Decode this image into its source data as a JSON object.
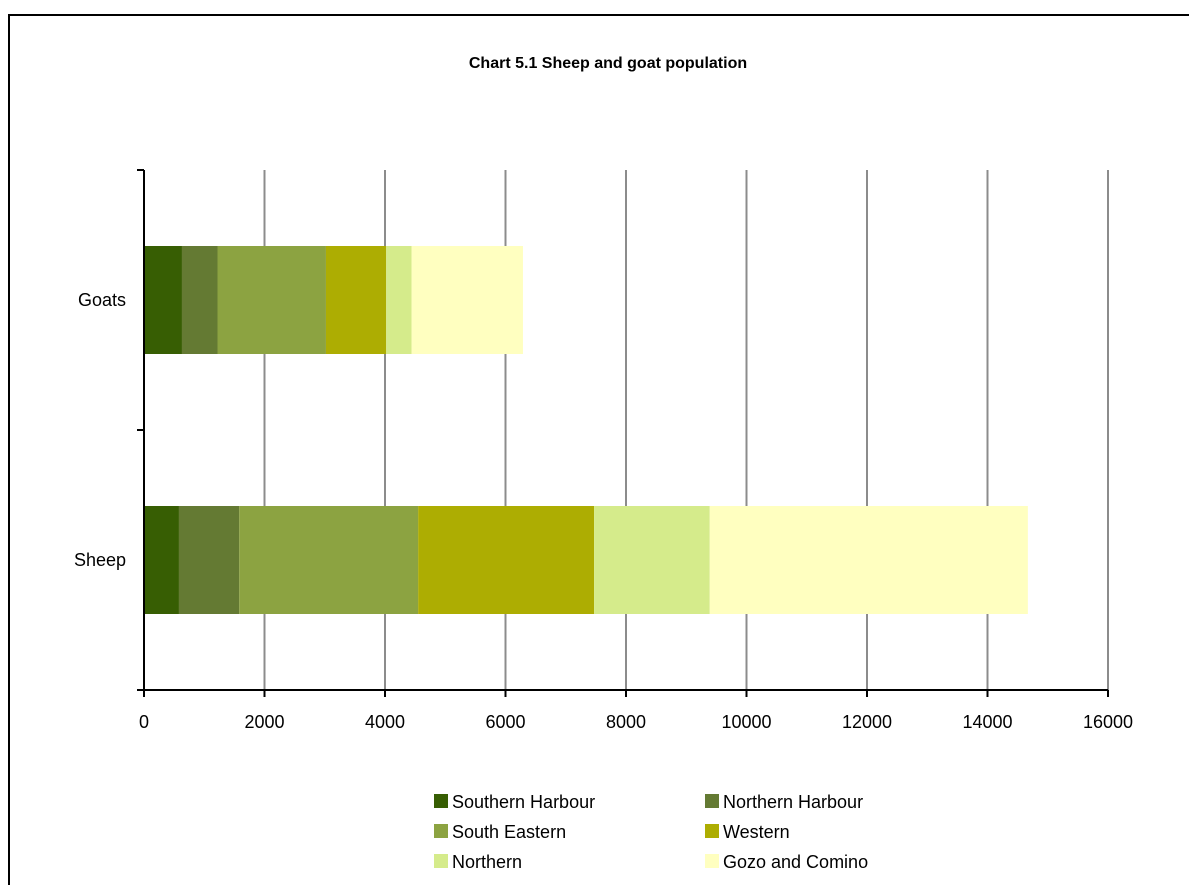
{
  "chart_data": {
    "type": "bar",
    "orientation": "horizontal",
    "stacked": true,
    "title": "Chart 5.1  Sheep and goat population",
    "xlabel": "",
    "ylabel": "",
    "categories": [
      "Goats",
      "Sheep"
    ],
    "xlim": [
      0,
      16000
    ],
    "x_ticks": [
      0,
      2000,
      4000,
      6000,
      8000,
      10000,
      12000,
      14000,
      16000
    ],
    "x_tick_labels": [
      "0",
      "2000",
      "4000",
      "6000",
      "8000",
      "10000",
      "12000",
      "14000",
      "16000"
    ],
    "grid": "vertical",
    "legend_position": "bottom",
    "series": [
      {
        "name": "Southern Harbour",
        "color": "#375e03",
        "values": [
          630,
          580
        ]
      },
      {
        "name": "Northern Harbour",
        "color": "#647a33",
        "values": [
          590,
          1000
        ]
      },
      {
        "name": "South Eastern",
        "color": "#8ca341",
        "values": [
          1800,
          2970
        ]
      },
      {
        "name": "Western",
        "color": "#adad02",
        "values": [
          1000,
          2920
        ]
      },
      {
        "name": "Northern",
        "color": "#d5eb8b",
        "values": [
          420,
          1920
        ]
      },
      {
        "name": "Gozo and Comino",
        "color": "#ffffc0",
        "values": [
          1850,
          5280
        ]
      }
    ]
  }
}
